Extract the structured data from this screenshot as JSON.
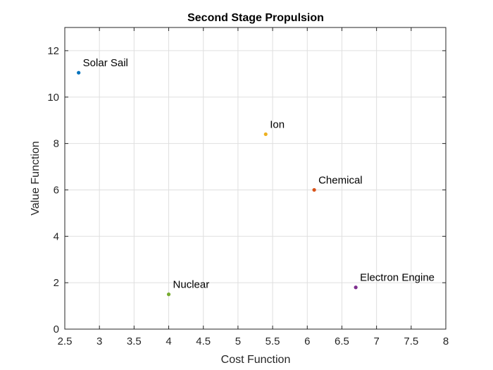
{
  "chart_data": {
    "type": "scatter",
    "title": "Second Stage Propulsion",
    "xlabel": "Cost Function",
    "ylabel": "Value Function",
    "xlim": [
      2.5,
      8
    ],
    "ylim": [
      0,
      13
    ],
    "xticks": [
      2.5,
      3,
      3.5,
      4,
      4.5,
      5,
      5.5,
      6,
      6.5,
      7,
      7.5,
      8
    ],
    "xtick_labels": [
      "2.5",
      "3",
      "3.5",
      "4",
      "4.5",
      "5",
      "5.5",
      "6",
      "6.5",
      "7",
      "7.5",
      "8"
    ],
    "yticks": [
      0,
      2,
      4,
      6,
      8,
      10,
      12
    ],
    "ytick_labels": [
      "0",
      "2",
      "4",
      "6",
      "8",
      "10",
      "12"
    ],
    "grid": true,
    "points": [
      {
        "label": "Solar Sail",
        "x": 2.7,
        "y": 11.05,
        "color": "#0072BD"
      },
      {
        "label": "Ion",
        "x": 5.4,
        "y": 8.4,
        "color": "#EDB120"
      },
      {
        "label": "Chemical",
        "x": 6.1,
        "y": 6.0,
        "color": "#D95319"
      },
      {
        "label": "Nuclear",
        "x": 4.0,
        "y": 1.5,
        "color": "#77AC30"
      },
      {
        "label": "Electron Engine",
        "x": 6.7,
        "y": 1.8,
        "color": "#7E2F8E"
      }
    ]
  }
}
